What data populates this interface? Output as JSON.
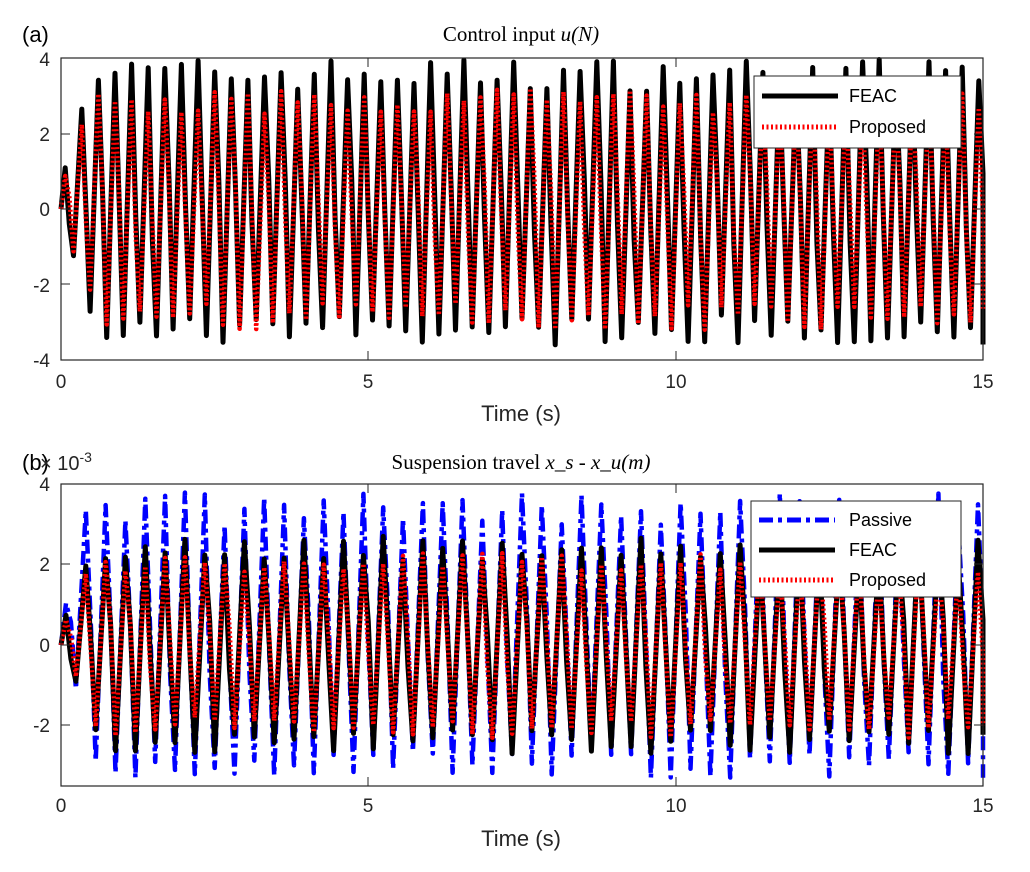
{
  "chart_data": [
    {
      "panel_label": "(a)",
      "type": "line",
      "title_prefix": "Control input ",
      "title_math": "u(N)",
      "xlabel": "Time (s)",
      "ylabel": "",
      "xlim": [
        0,
        15
      ],
      "ylim": [
        -4,
        4
      ],
      "xticks": [
        0,
        5,
        10,
        15
      ],
      "yticks": [
        -4,
        -2,
        0,
        2,
        4
      ],
      "grid": false,
      "legend_placement": "top-right",
      "signal_note": "oscillating signals, approx. 3.7 cycles per second",
      "series": [
        {
          "name": "FEAC",
          "color": "#000000",
          "style": "solid",
          "amplitude_range": [
            -3.6,
            4.0
          ],
          "freq_hz": 3.7
        },
        {
          "name": "Proposed",
          "color": "#ff0000",
          "style": "dotted",
          "amplitude_range": [
            -3.2,
            3.2
          ],
          "freq_hz": 3.7
        }
      ]
    },
    {
      "panel_label": "(b)",
      "type": "line",
      "title_prefix": "Suspension travel ",
      "title_math": "x_s - x_u(m)",
      "exponent_label": "× 10",
      "exponent_power": "-3",
      "xlabel": "Time (s)",
      "ylabel": "",
      "xlim": [
        0,
        15
      ],
      "ylim": [
        -3.5,
        4
      ],
      "xticks": [
        0,
        5,
        10,
        15
      ],
      "yticks": [
        -2,
        0,
        2,
        4
      ],
      "grid": false,
      "legend_placement": "top-right",
      "series": [
        {
          "name": "Passive",
          "color": "#0000ff",
          "style": "dashdot",
          "amplitude_range": [
            -3.3,
            3.8
          ],
          "freq_hz": 3.1
        },
        {
          "name": "FEAC",
          "color": "#000000",
          "style": "solid",
          "amplitude_range": [
            -2.7,
            2.7
          ],
          "freq_hz": 3.1
        },
        {
          "name": "Proposed",
          "color": "#ff0000",
          "style": "dotted",
          "amplitude_range": [
            -2.3,
            2.3
          ],
          "freq_hz": 3.1
        }
      ]
    }
  ]
}
